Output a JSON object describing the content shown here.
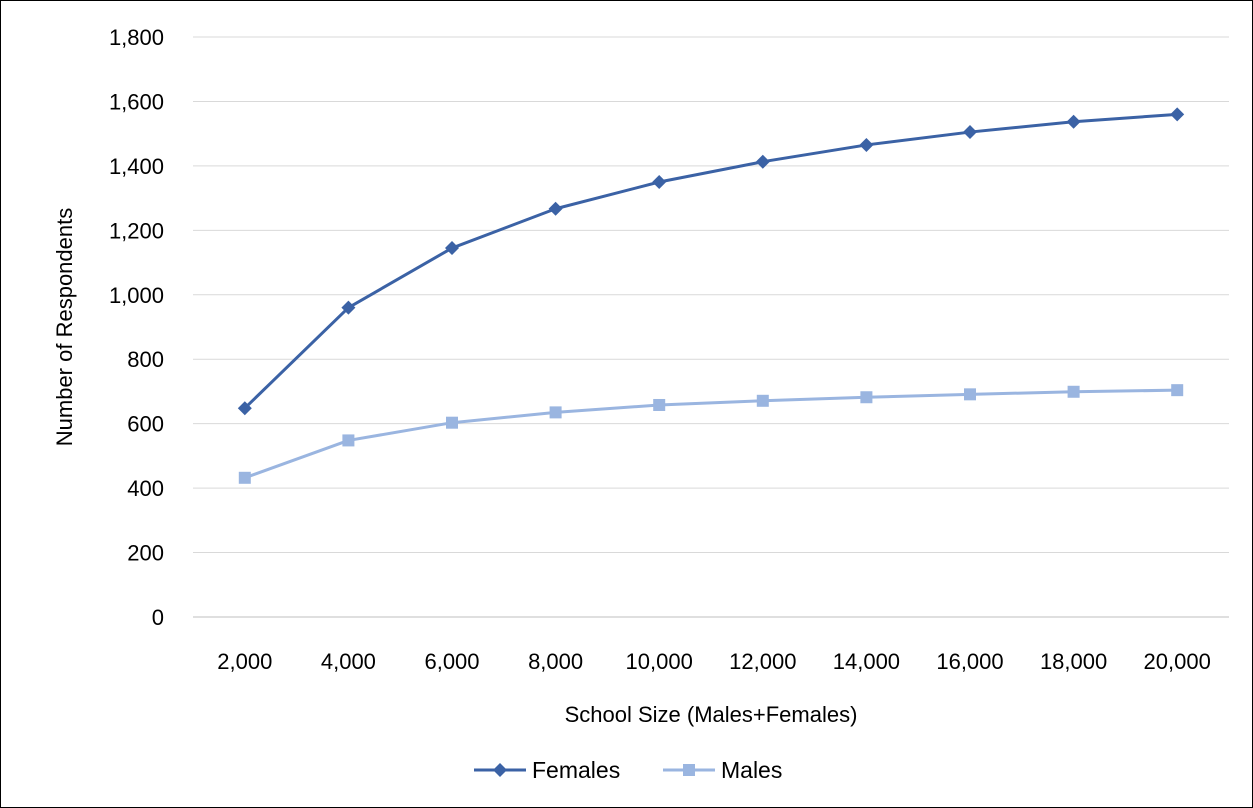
{
  "chart_data": {
    "type": "line",
    "title": "",
    "xlabel": "School Size (Males+Females)",
    "ylabel": "Number of Respondents",
    "x": [
      2000,
      4000,
      6000,
      8000,
      10000,
      12000,
      14000,
      16000,
      18000,
      20000
    ],
    "x_tick_labels": [
      "2,000",
      "4,000",
      "6,000",
      "8,000",
      "10,000",
      "12,000",
      "14,000",
      "16,000",
      "18,000",
      "20,000"
    ],
    "ylim": [
      0,
      1800
    ],
    "y_ticks": [
      0,
      200,
      400,
      600,
      800,
      1000,
      1200,
      1400,
      1600,
      1800
    ],
    "y_tick_labels": [
      "0",
      "200",
      "400",
      "600",
      "800",
      "1,000",
      "1,200",
      "1,400",
      "1,600",
      "1,800"
    ],
    "grid": "horizontal",
    "legend_position": "bottom",
    "series": [
      {
        "name": "Females",
        "marker": "diamond",
        "color": "#3b62a5",
        "values": [
          648,
          960,
          1145,
          1267,
          1350,
          1413,
          1465,
          1505,
          1537,
          1560
        ]
      },
      {
        "name": "Males",
        "marker": "square",
        "color": "#9ab5e0",
        "values": [
          432,
          548,
          603,
          635,
          658,
          671,
          682,
          691,
          699,
          704
        ]
      }
    ]
  }
}
